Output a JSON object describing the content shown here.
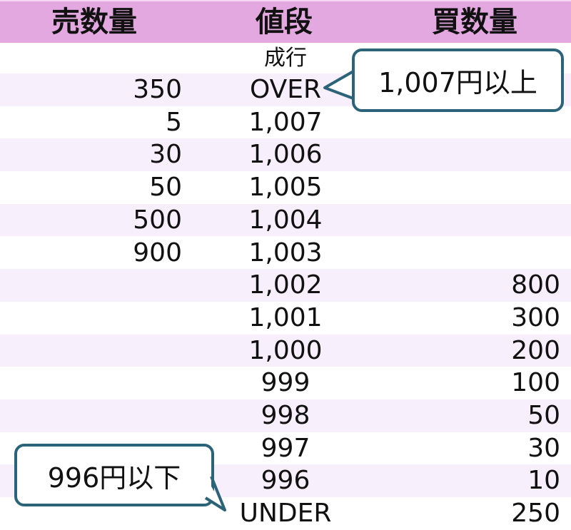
{
  "header": {
    "sell": "売数量",
    "price": "値段",
    "buy": "買数量"
  },
  "market_label": "成行",
  "rows": [
    {
      "sell": "350",
      "price": "OVER",
      "buy": ""
    },
    {
      "sell": "5",
      "price": "1,007",
      "buy": ""
    },
    {
      "sell": "30",
      "price": "1,006",
      "buy": ""
    },
    {
      "sell": "50",
      "price": "1,005",
      "buy": ""
    },
    {
      "sell": "500",
      "price": "1,004",
      "buy": ""
    },
    {
      "sell": "900",
      "price": "1,003",
      "buy": ""
    },
    {
      "sell": "",
      "price": "1,002",
      "buy": "800"
    },
    {
      "sell": "",
      "price": "1,001",
      "buy": "300"
    },
    {
      "sell": "",
      "price": "1,000",
      "buy": "200"
    },
    {
      "sell": "",
      "price": "999",
      "buy": "100"
    },
    {
      "sell": "",
      "price": "998",
      "buy": "50"
    },
    {
      "sell": "",
      "price": "997",
      "buy": "30"
    },
    {
      "sell": "",
      "price": "996",
      "buy": "10"
    },
    {
      "sell": "",
      "price": "UNDER",
      "buy": "250"
    }
  ],
  "callouts": {
    "over": "1,007円以上",
    "under": "996円以下"
  },
  "colors": {
    "header": "#e3a8e0",
    "stripe": "#f8effc",
    "callout_border": "#2b6378"
  }
}
